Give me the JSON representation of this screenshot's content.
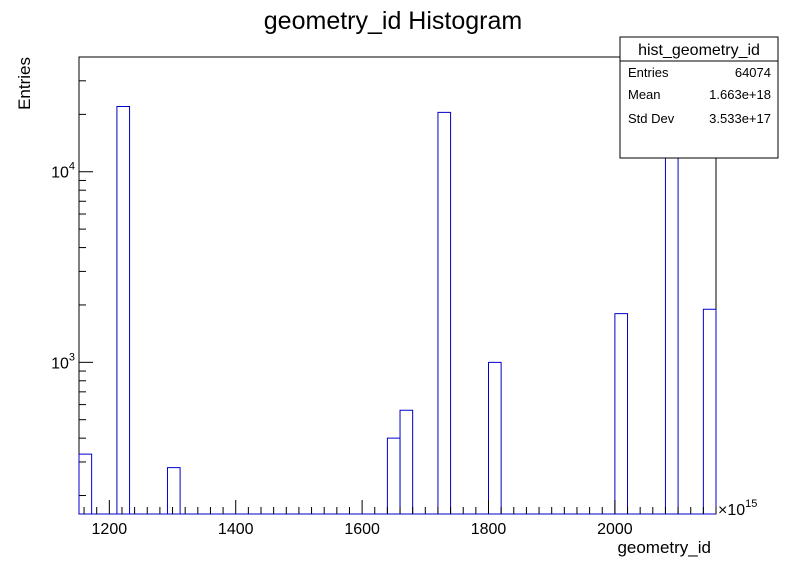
{
  "chart_data": {
    "type": "bar",
    "title": "geometry_id Histogram",
    "xlabel": "geometry_id",
    "ylabel": "Entries",
    "x_multiplier_label": "×10",
    "x_multiplier_exponent": "15",
    "xlim": [
      1152,
      2160
    ],
    "ylim": [
      160,
      40000
    ],
    "yscale": "log",
    "grid": false,
    "bin_width": 20,
    "x_ticks": [
      1200,
      1400,
      1600,
      1800,
      2000
    ],
    "x_tick_labels": [
      "1200",
      "1400",
      "1600",
      "1800",
      "2000"
    ],
    "y_ticks": [
      1000,
      10000
    ],
    "y_tick_labels": [
      {
        "base": "10",
        "exp": "3"
      },
      {
        "base": "10",
        "exp": "4"
      }
    ],
    "bins": [
      {
        "x0": 1152,
        "x1": 1172,
        "value": 330
      },
      {
        "x0": 1212,
        "x1": 1232,
        "value": 22000
      },
      {
        "x0": 1292,
        "x1": 1312,
        "value": 280
      },
      {
        "x0": 1640,
        "x1": 1660,
        "value": 400
      },
      {
        "x0": 1660,
        "x1": 1680,
        "value": 560
      },
      {
        "x0": 1720,
        "x1": 1740,
        "value": 20500
      },
      {
        "x0": 1800,
        "x1": 1820,
        "value": 1000
      },
      {
        "x0": 2000,
        "x1": 2020,
        "value": 1800
      },
      {
        "x0": 2080,
        "x1": 2100,
        "value": 16000
      },
      {
        "x0": 2140,
        "x1": 2160,
        "value": 1900
      }
    ],
    "stats_box": {
      "title": "hist_geometry_id",
      "rows": [
        {
          "label": "Entries",
          "value": "64074"
        },
        {
          "label": "Mean",
          "value": "1.663e+18"
        },
        {
          "label": "Std Dev",
          "value": "3.533e+17"
        }
      ]
    },
    "colors": {
      "line": "#0000cc",
      "axis": "#000000",
      "background": "#ffffff"
    }
  }
}
